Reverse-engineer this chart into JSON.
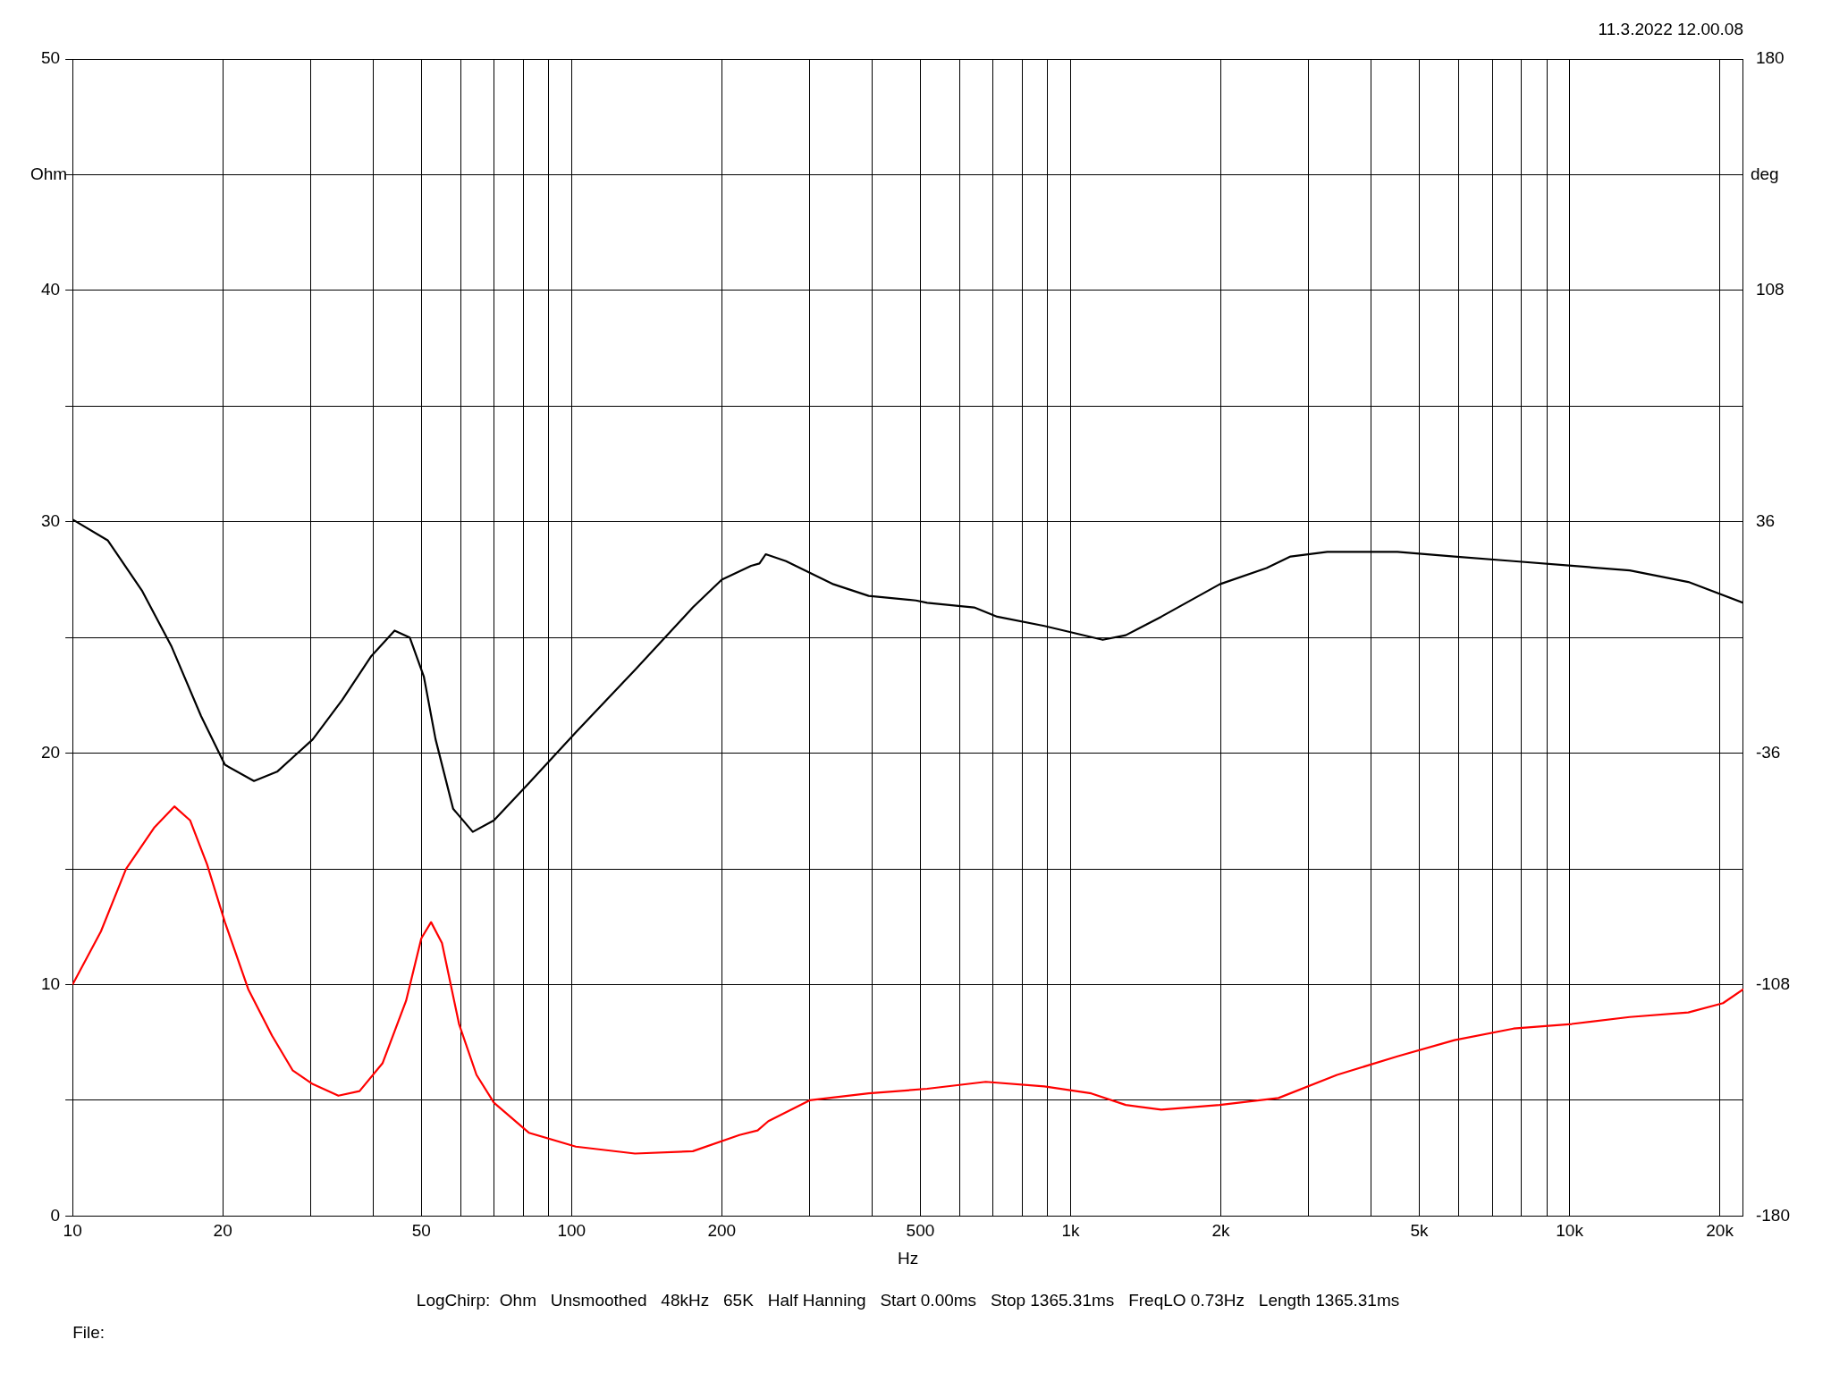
{
  "chart_data": {
    "type": "line",
    "subtitle": "11.3.2022 12.00.08",
    "xlabel": "Hz",
    "ylabel": "Ohm",
    "y2label": "deg",
    "log": "x",
    "grid": true,
    "marker": "none",
    "line_style": "solid",
    "xlim": [
      10,
      22300
    ],
    "xticks": [
      {
        "value": 10,
        "label": "10"
      },
      {
        "value": 20,
        "label": "20"
      },
      {
        "value": 30,
        "label": null
      },
      {
        "value": 40,
        "label": null
      },
      {
        "value": 50,
        "label": "50"
      },
      {
        "value": 60,
        "label": null
      },
      {
        "value": 70,
        "label": null
      },
      {
        "value": 80,
        "label": null
      },
      {
        "value": 90,
        "label": null
      },
      {
        "value": 100,
        "label": "100"
      },
      {
        "value": 200,
        "label": "200"
      },
      {
        "value": 300,
        "label": null
      },
      {
        "value": 400,
        "label": null
      },
      {
        "value": 500,
        "label": "500"
      },
      {
        "value": 600,
        "label": null
      },
      {
        "value": 700,
        "label": null
      },
      {
        "value": 800,
        "label": null
      },
      {
        "value": 900,
        "label": null
      },
      {
        "value": 1000,
        "label": "1k"
      },
      {
        "value": 2000,
        "label": "2k"
      },
      {
        "value": 3000,
        "label": null
      },
      {
        "value": 4000,
        "label": null
      },
      {
        "value": 5000,
        "label": "5k"
      },
      {
        "value": 6000,
        "label": null
      },
      {
        "value": 7000,
        "label": null
      },
      {
        "value": 8000,
        "label": null
      },
      {
        "value": 9000,
        "label": null
      },
      {
        "value": 10000,
        "label": "10k"
      },
      {
        "value": 20000,
        "label": "20k"
      }
    ],
    "ylim": [
      0,
      50
    ],
    "yticks": [
      0,
      {
        "value": 5,
        "label": null
      },
      10,
      {
        "value": 15,
        "label": null
      },
      20,
      {
        "value": 25,
        "label": null
      },
      30,
      {
        "value": 35,
        "label": null
      },
      40,
      {
        "value": 45,
        "label": null
      },
      50
    ],
    "y2lim": [
      -180,
      180
    ],
    "y2ticks": [
      -180,
      -108,
      -36,
      36,
      108,
      180
    ],
    "series": [
      {
        "color": "#000000",
        "x": [
          10,
          11.76,
          13.8,
          15.8,
          18.1,
          20.2,
          23.1,
          25.7,
          27.9,
          30.3,
          34.7,
          39.7,
          44.2,
          47.4,
          50.6,
          53.4,
          57.9,
          63.4,
          69.9,
          82.1,
          102,
          134,
          175,
          200,
          229,
          238,
          245,
          269,
          335,
          394,
          490,
          516,
          641,
          713,
          886,
          1160,
          1290,
          1520,
          1990,
          2470,
          2760,
          3270,
          4520,
          5880,
          7720,
          10100,
          13200,
          17300,
          22300
        ],
        "values": [
          30.1,
          29.2,
          27.0,
          24.6,
          21.6,
          19.5,
          18.8,
          19.2,
          19.9,
          20.6,
          22.3,
          24.2,
          25.3,
          25.0,
          23.3,
          20.6,
          17.6,
          16.6,
          17.1,
          18.7,
          20.9,
          23.6,
          26.3,
          27.5,
          28.1,
          28.2,
          28.6,
          28.3,
          27.3,
          26.8,
          26.6,
          26.5,
          26.3,
          25.9,
          25.5,
          24.9,
          25.1,
          25.9,
          27.3,
          28.0,
          28.5,
          28.7,
          28.7,
          28.5,
          28.3,
          28.1,
          27.9,
          27.4,
          26.5
        ]
      },
      {
        "color": "#ff0000",
        "x": [
          10,
          11.4,
          12.8,
          14.6,
          16.0,
          17.2,
          18.6,
          20.2,
          22.5,
          25.1,
          27.6,
          30.3,
          34.1,
          37.6,
          41.8,
          46.6,
          50.0,
          52.3,
          55.0,
          59.5,
          64.5,
          69.9,
          82.1,
          102,
          134,
          175,
          217,
          236,
          248,
          300,
          394,
          516,
          676,
          886,
          1100,
          1290,
          1520,
          1990,
          2610,
          3420,
          4520,
          5880,
          7720,
          10100,
          13200,
          17300,
          20300,
          22300
        ],
        "values": [
          10.0,
          12.3,
          15.0,
          16.8,
          17.7,
          17.1,
          15.2,
          12.7,
          9.8,
          7.8,
          6.3,
          5.7,
          5.2,
          5.4,
          6.6,
          9.3,
          12.0,
          12.7,
          11.8,
          8.3,
          6.1,
          4.9,
          3.6,
          3.0,
          2.7,
          2.8,
          3.5,
          3.7,
          4.1,
          5.0,
          5.3,
          5.5,
          5.8,
          5.6,
          5.3,
          4.8,
          4.6,
          4.8,
          5.1,
          6.1,
          6.9,
          7.6,
          8.1,
          8.3,
          8.6,
          8.8,
          9.2,
          9.8
        ]
      }
    ],
    "annotations": [
      "LogChirp:  Ohm   Unsmoothed   48kHz   65K   Half Hanning   Start 0.00ms   Stop 1365.31ms   FreqLO 0.73Hz   Length 1365.31ms",
      "File:"
    ]
  }
}
